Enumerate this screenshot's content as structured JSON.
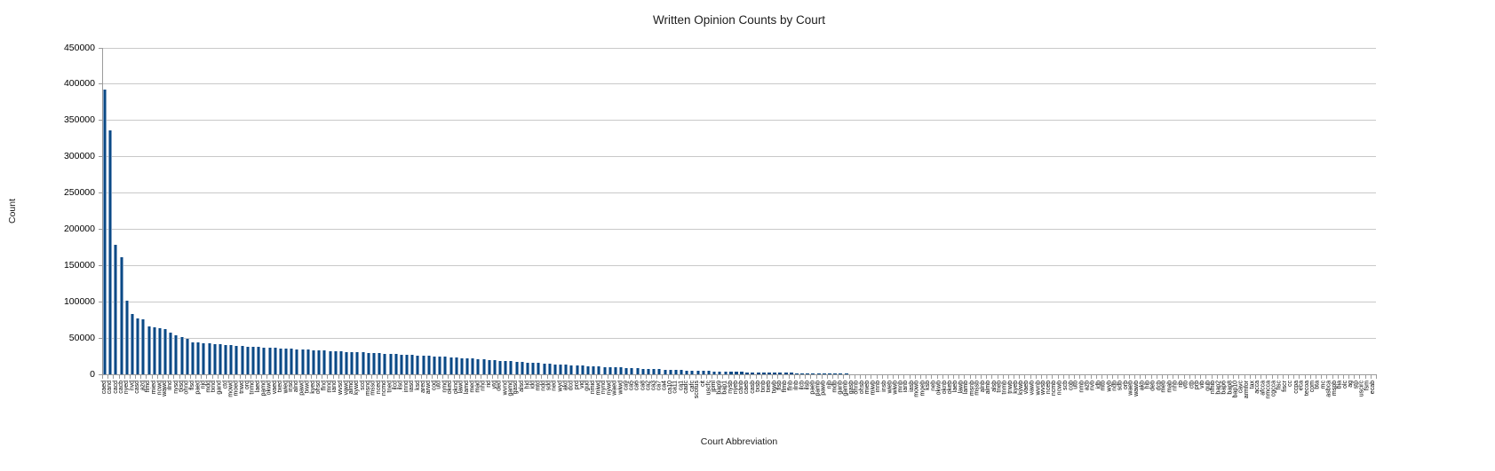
{
  "page": {
    "background": "#ffffff"
  },
  "chart_data": {
    "type": "bar",
    "title": "Written Opinion Counts by Court",
    "xlabel": "Court Abbreviation",
    "ylabel": "Count",
    "ylim": [
      0,
      450000
    ],
    "y_tick_interval": 50000,
    "y_ticks": [
      0,
      50000,
      100000,
      150000,
      200000,
      250000,
      300000,
      350000,
      400000,
      450000
    ],
    "grid": true,
    "legend": false,
    "bar_color": "#0a4a85",
    "bar_edge_color": "#7d9dc2",
    "gridline_color": "#c9c9c9",
    "axis_color": "#9b9b9b",
    "categories": [
      "caed",
      "cand",
      "cacd",
      "cacb",
      "nyed",
      "nvd",
      "casd",
      "azd",
      "flmd",
      "mied",
      "ncwd",
      "wawd",
      "ilnd",
      "nysd",
      "txsd",
      "ohnd",
      "flsd",
      "paed",
      "njd",
      "mdd",
      "txnd",
      "gand",
      "ctd",
      "mowd",
      "moed",
      "tnwd",
      "ord",
      "tnmd",
      "laed",
      "pamd",
      "okwd",
      "vaed",
      "txed",
      "wied",
      "insd",
      "alnd",
      "pawd",
      "txwd",
      "kyed",
      "ohsd",
      "flnd",
      "mnd",
      "iand",
      "wvsd",
      "vawd",
      "almd",
      "kywd",
      "scd",
      "msnd",
      "mssd",
      "nced",
      "ncmd",
      "tned",
      "ilcd",
      "ilsd",
      "innd",
      "iasd",
      "ksd",
      "ared",
      "arwd",
      "cod",
      "utd",
      "nmd",
      "oked",
      "oknd",
      "lawd",
      "lamd",
      "med",
      "mad",
      "nhd",
      "rid",
      "vtd",
      "ded",
      "wvnd",
      "gamd",
      "gasd",
      "alsd",
      "hid",
      "idd",
      "mtd",
      "ndd",
      "sdd",
      "ned",
      "wyd",
      "akd",
      "dcd",
      "prd",
      "vid",
      "gud",
      "nmid",
      "miwd",
      "nynd",
      "nywd",
      "waed",
      "wiwd",
      "ca9",
      "ca5",
      "ca6",
      "ca8",
      "ca2",
      "ca3",
      "ca7",
      "ca4",
      "ca10",
      "ca11",
      "ca1",
      "cadc",
      "cafc",
      "scotus",
      "cit",
      "uscfc",
      "jpml",
      "bap9",
      "bap1",
      "nysb",
      "nyeb",
      "canb",
      "caeb",
      "casb",
      "txsb",
      "txnb",
      "txeb",
      "txwb",
      "flsb",
      "flmb",
      "flnb",
      "ilnb",
      "ilcb",
      "ilsb",
      "paeb",
      "pamb",
      "pawb",
      "njb",
      "mdb",
      "ganb",
      "gamb",
      "gasb",
      "ohnb",
      "ohsb",
      "mieb",
      "miwb",
      "innb",
      "insb",
      "wieb",
      "wiwb",
      "mnb",
      "ianb",
      "iasb",
      "mowb",
      "moeb",
      "ksb",
      "neb",
      "okwb",
      "oknb",
      "okeb",
      "laeb",
      "lawb",
      "lamb",
      "msnb",
      "mssb",
      "alnb",
      "almb",
      "alsb",
      "tneb",
      "tnmb",
      "tnwb",
      "kyeb",
      "kywb",
      "vaeb",
      "vawb",
      "wvnb",
      "wvsb",
      "nceb",
      "ncmb",
      "ncwb",
      "scb",
      "cob",
      "utb",
      "nmb",
      "azb",
      "nvb",
      "idb",
      "mtb",
      "wyb",
      "ndb",
      "sdb",
      "orb",
      "waeb",
      "wawb",
      "akb",
      "hib",
      "deb",
      "dcb",
      "meb",
      "mab",
      "nhb",
      "rib",
      "vtb",
      "ctb",
      "prb",
      "vib",
      "gub",
      "nmib",
      "bap2",
      "bap6",
      "bap8",
      "bap10",
      "cavc",
      "armfor",
      "tax",
      "acca",
      "afcca",
      "nmcca",
      "cgcca",
      "fisc",
      "fiscr",
      "cc",
      "ccpa",
      "eca",
      "tecoa",
      "com",
      "bta",
      "mc",
      "asbca",
      "mspb",
      "bia",
      "olc",
      "ag",
      "stp",
      "uscirc",
      "fsm",
      "ecab"
    ],
    "values": [
      393000,
      336000,
      179000,
      162000,
      101000,
      83000,
      77500,
      75500,
      66000,
      64500,
      63500,
      62500,
      57000,
      53500,
      51500,
      49500,
      44500,
      43500,
      42800,
      42200,
      41600,
      41000,
      40400,
      39800,
      39300,
      38800,
      38300,
      37900,
      37500,
      37100,
      36700,
      36300,
      35900,
      35500,
      35100,
      34700,
      34300,
      33900,
      33500,
      33100,
      32700,
      32300,
      31900,
      31500,
      31100,
      30700,
      30300,
      30000,
      29700,
      29400,
      29000,
      28600,
      28200,
      27800,
      27400,
      27000,
      26600,
      26200,
      25800,
      25400,
      25000,
      24500,
      24000,
      23500,
      23000,
      22500,
      22000,
      21500,
      21000,
      20500,
      20000,
      19400,
      18900,
      18400,
      17900,
      17400,
      16900,
      16400,
      15900,
      15400,
      15000,
      14500,
      14000,
      13600,
      13200,
      12800,
      12400,
      12000,
      11600,
      11200,
      10800,
      10400,
      10000,
      9600,
      9200,
      8800,
      8400,
      8000,
      7700,
      7400,
      7100,
      6800,
      6500,
      6200,
      5900,
      5600,
      5300,
      5000,
      4800,
      4600,
      4400,
      4200,
      4000,
      3800,
      3600,
      3400,
      3200,
      3000,
      2850,
      2700,
      2550,
      2400,
      2250,
      2100,
      2000,
      1900,
      1800,
      1700,
      1600,
      1500,
      1400,
      1320,
      1240,
      1160,
      1090,
      1020,
      960,
      900,
      850,
      800,
      750,
      710,
      670,
      630,
      600,
      570,
      540,
      510,
      480,
      450,
      430,
      410,
      390,
      370,
      350,
      330,
      310,
      290,
      275,
      260,
      245,
      230,
      218,
      206,
      195,
      184,
      174,
      164,
      155,
      146,
      138,
      130,
      123,
      116,
      110,
      104,
      98,
      92,
      87,
      82,
      77,
      73,
      69,
      65,
      61,
      57,
      54,
      51,
      48,
      45,
      42,
      40,
      38,
      36,
      34,
      32,
      30,
      28,
      26,
      25,
      24,
      23,
      22,
      21,
      20,
      19,
      18,
      17,
      16,
      15,
      14,
      13,
      12,
      12,
      11,
      11,
      10,
      10,
      9,
      9,
      8,
      8,
      7,
      7,
      6,
      6,
      5,
      5,
      4,
      4,
      3,
      3
    ]
  }
}
